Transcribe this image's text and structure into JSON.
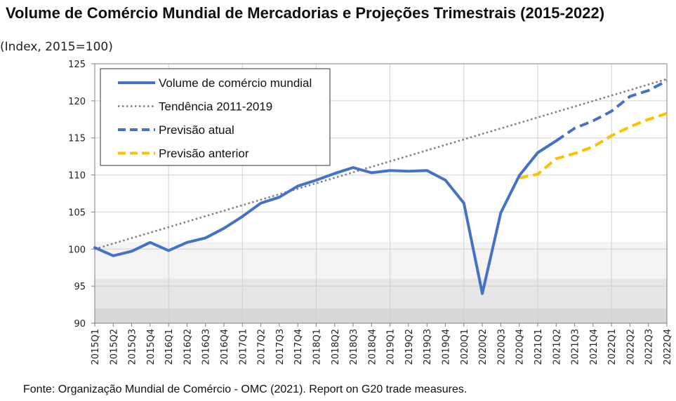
{
  "title": "Volume de Comércio Mundial de Mercadorias e Projeções Trimestrais (2015-2022)",
  "subtitle": "(Index, 2015=100)",
  "source": "Fonte: Organização Mundial de Comércio - OMC (2021). Report on G20 trade measures.",
  "chart_data": {
    "type": "line",
    "categories": [
      "2015Q1",
      "2015Q2",
      "2015Q3",
      "2015Q4",
      "2016Q1",
      "2016Q2",
      "2016Q3",
      "2016Q4",
      "2017Q1",
      "2017Q2",
      "2017Q3",
      "2017Q4",
      "2018Q1",
      "2018Q2",
      "2018Q3",
      "2018Q4",
      "2019Q1",
      "2019Q2",
      "2019Q3",
      "2019Q4",
      "2020Q1",
      "2020Q2",
      "2020Q3",
      "2020Q4",
      "2021Q1",
      "2021Q2",
      "2021Q3",
      "2021Q4",
      "2022Q1",
      "2022Q2",
      "2022Q3",
      "2022Q4"
    ],
    "ylim": [
      90,
      125
    ],
    "yticks": [
      90,
      95,
      100,
      105,
      110,
      115,
      120,
      125
    ],
    "legend_position": "top-left",
    "grid": true,
    "series": [
      {
        "name": "Volume de comércio mundial",
        "style": "solid",
        "color": "#4472C4",
        "values": [
          100.2,
          99.1,
          99.7,
          100.9,
          99.8,
          100.9,
          101.5,
          102.8,
          104.4,
          106.2,
          107.0,
          108.5,
          109.3,
          110.2,
          111.0,
          110.3,
          110.6,
          110.5,
          110.6,
          109.3,
          106.2,
          94.0,
          104.9,
          109.9,
          113.0,
          114.6,
          null,
          null,
          null,
          null,
          null,
          null
        ]
      },
      {
        "name": "Tendência 2011-2019",
        "style": "dotted",
        "color": "#808080",
        "values": [
          100.0,
          100.74,
          101.48,
          102.22,
          102.96,
          103.7,
          104.44,
          105.18,
          105.92,
          106.66,
          107.4,
          108.14,
          108.88,
          109.62,
          110.36,
          111.1,
          111.84,
          112.58,
          113.32,
          114.06,
          114.8,
          115.54,
          116.28,
          117.02,
          117.76,
          118.5,
          119.24,
          119.98,
          120.72,
          121.46,
          122.2,
          122.94
        ]
      },
      {
        "name": "Previsão atual",
        "style": "dashed",
        "color": "#4472C4",
        "values": [
          null,
          null,
          null,
          null,
          null,
          null,
          null,
          null,
          null,
          null,
          null,
          null,
          null,
          null,
          null,
          null,
          null,
          null,
          null,
          null,
          null,
          null,
          null,
          null,
          null,
          114.6,
          116.3,
          117.3,
          118.6,
          120.6,
          121.4,
          122.7
        ]
      },
      {
        "name": "Previsão anterior",
        "style": "dashed",
        "color": "#FFC000",
        "values": [
          null,
          null,
          null,
          null,
          null,
          null,
          null,
          null,
          null,
          null,
          null,
          null,
          null,
          null,
          null,
          null,
          null,
          null,
          null,
          null,
          null,
          null,
          null,
          109.6,
          110.1,
          112.2,
          112.9,
          113.8,
          115.3,
          116.5,
          117.5,
          118.3
        ]
      }
    ]
  },
  "colors": {
    "band_light": "#f4f4f4",
    "band_mid": "#e6e6e6",
    "band_dark": "#d8d8d8",
    "grid": "#d0d0d0",
    "axis": "#808080"
  }
}
